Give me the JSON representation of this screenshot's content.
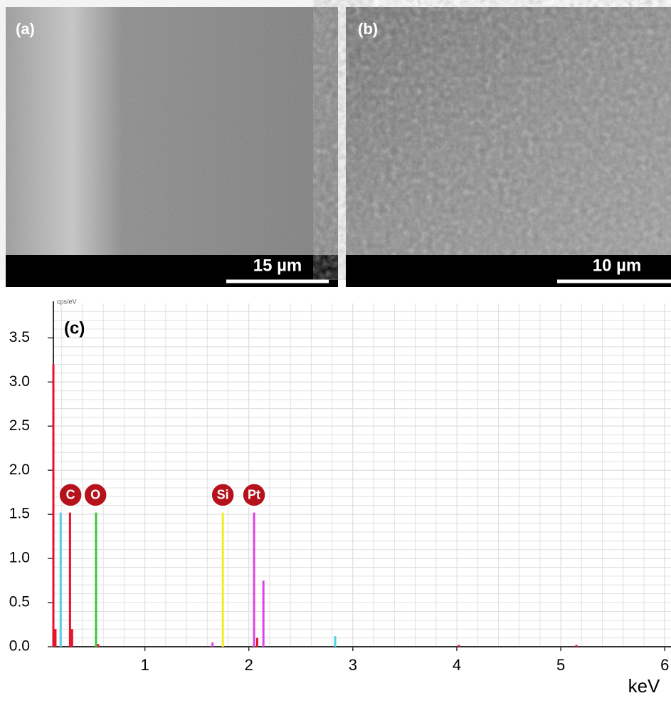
{
  "images": [
    {
      "label": "(a)",
      "scale_bar": "15 µm"
    },
    {
      "label": "(b)",
      "scale_bar": "10 µm"
    }
  ],
  "chart_data": {
    "type": "spectrum",
    "panel_label": "(c)",
    "y_unit": "cps/eV",
    "x_label": "keV",
    "xlim": [
      0.12,
      6.06
    ],
    "ylim": [
      0,
      3.85
    ],
    "xticks": [
      1,
      2,
      3,
      4,
      5,
      6
    ],
    "yticks": [
      {
        "value": 0,
        "label": "0.0"
      },
      0.5,
      {
        "value": 1,
        "label": "1.0"
      },
      1.5,
      {
        "value": 2,
        "label": "2.0"
      },
      2.5,
      {
        "value": 3,
        "label": "3.0"
      },
      3.5
    ],
    "grid": true,
    "series": [
      {
        "color": "#e8102a",
        "x": [
          0.12,
          0.14,
          0.28,
          0.3,
          0.55,
          2.05,
          2.08,
          4.02,
          5.15
        ],
        "values": [
          3.2,
          0.2,
          1.52,
          0.2,
          0.03,
          0.08,
          0.1,
          0.02,
          0.02
        ]
      },
      {
        "color": "#4fd2e8",
        "x": [
          0.19,
          2.83
        ],
        "values": [
          1.52,
          0.12
        ]
      },
      {
        "color": "#3cc83c",
        "x": [
          0.53
        ],
        "values": [
          1.52
        ]
      },
      {
        "color": "#f0f020",
        "x": [
          1.75
        ],
        "values": [
          1.52
        ]
      },
      {
        "color": "#e040e8",
        "x": [
          1.65,
          2.05,
          2.14
        ],
        "values": [
          0.05,
          1.52,
          0.75
        ]
      }
    ],
    "annotations": [
      {
        "text": "C",
        "x": 0.285,
        "y": 1.72
      },
      {
        "text": "O",
        "x": 0.525,
        "y": 1.72
      },
      {
        "text": "Si",
        "x": 1.75,
        "y": 1.72
      },
      {
        "text": "Pt",
        "x": 2.05,
        "y": 1.72
      }
    ]
  }
}
